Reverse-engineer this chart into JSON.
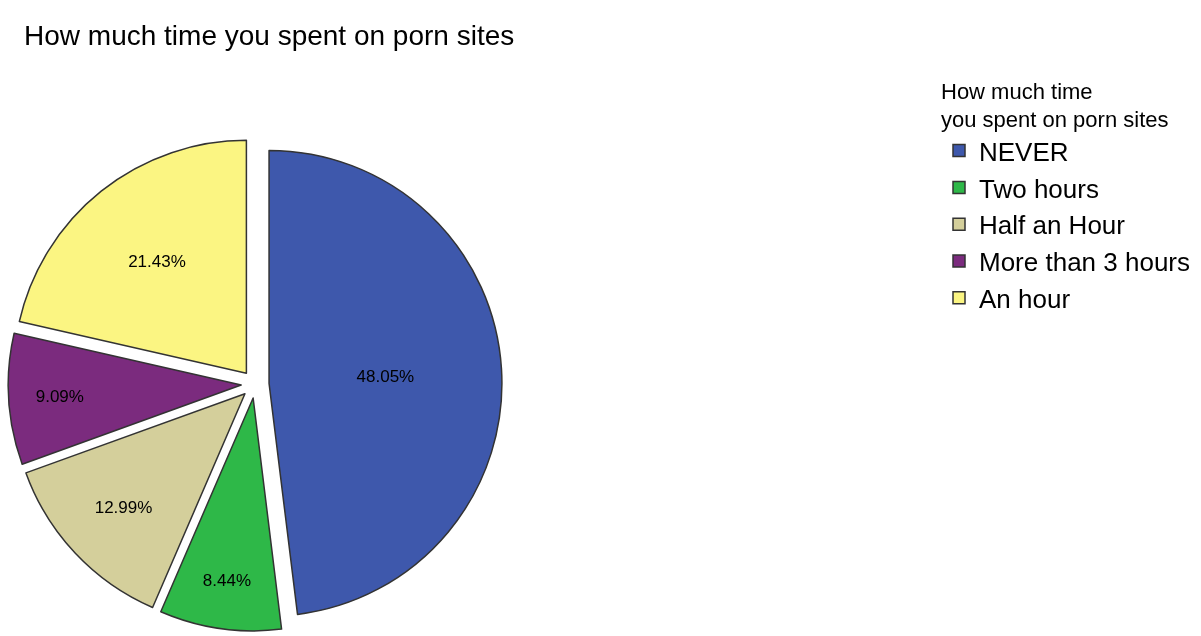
{
  "chart_data": {
    "type": "pie",
    "title": "How much time you spent on porn sites",
    "legend_title": "How much time you spent on porn sites",
    "categories": [
      "NEVER",
      "Two hours",
      "Half an Hour",
      "More than 3 hours",
      "An hour"
    ],
    "values": [
      48.05,
      8.44,
      12.99,
      9.09,
      21.43
    ],
    "colors": [
      "#3e58ac",
      "#2eb848",
      "#d4cf9b",
      "#7b2b7e",
      "#fbf582"
    ],
    "value_labels": [
      "48.05%",
      "8.44%",
      "12.99%",
      "9.09%",
      "21.43%"
    ],
    "legend": "top right"
  }
}
